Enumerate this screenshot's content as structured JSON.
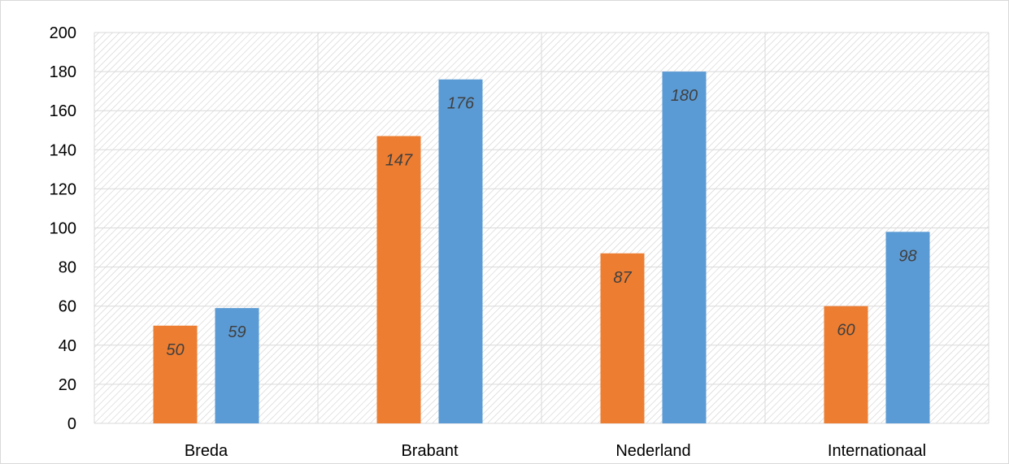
{
  "chart_data": {
    "type": "bar",
    "title": "",
    "xlabel": "",
    "ylabel": "",
    "categories": [
      "Breda",
      "Brabant",
      "Nederland",
      "Internationaal"
    ],
    "series": [
      {
        "values": [
          50,
          147,
          87,
          60
        ],
        "color": "#ED7D31"
      },
      {
        "values": [
          59,
          176,
          180,
          98
        ],
        "color": "#5B9BD5"
      }
    ],
    "ylim": [
      0,
      200
    ],
    "yticks": [
      0,
      20,
      40,
      60,
      80,
      100,
      120,
      140,
      160,
      180,
      200
    ],
    "grid": true,
    "legend": "none",
    "data_labels": true,
    "plot_background": "diagonal-hatch",
    "colors": {
      "gridline": "#d9d9d9",
      "hatch": "#d0d0d0",
      "data_label": "#404040"
    }
  }
}
